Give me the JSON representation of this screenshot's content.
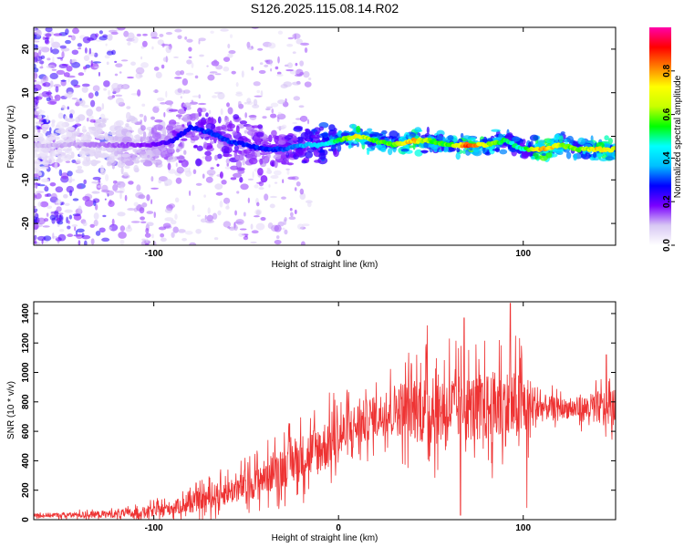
{
  "figure": {
    "title": "S126.2025.115.08.14.R02"
  },
  "chart_data": [
    {
      "type": "heatmap",
      "name": "spectrogram",
      "xlabel": "Height of straight line (km)",
      "ylabel": "Frequency (Hz)",
      "xlim": [
        -165,
        150
      ],
      "ylim": [
        -25,
        25
      ],
      "xticks": [
        -100,
        0,
        100
      ],
      "yticks": [
        -20,
        -10,
        0,
        10,
        20
      ],
      "grid": false,
      "colorbar": {
        "label": "Normalized spectral amplitude",
        "range": [
          0,
          1
        ],
        "ticks": [
          0.0,
          0.2,
          0.4,
          0.6,
          0.8
        ],
        "tick_labels": [
          "0.0",
          "0.2",
          "0.4",
          "0.6",
          "0.8"
        ],
        "colormap": [
          "#ffffff",
          "#d8c8f4",
          "#7a00ff",
          "#0000ff",
          "#00bfff",
          "#00ffff",
          "#00ff00",
          "#c8ff00",
          "#ffff00",
          "#ff8000",
          "#ff0000",
          "#ff00aa"
        ]
      },
      "ridge": {
        "x": [
          -165,
          -140,
          -120,
          -100,
          -90,
          -80,
          -70,
          -60,
          -50,
          -40,
          -30,
          -20,
          -10,
          0,
          10,
          20,
          30,
          40,
          50,
          60,
          70,
          80,
          90,
          100,
          110,
          120,
          130,
          140,
          150
        ],
        "frequency": [
          -2,
          -2,
          -2,
          -2,
          -1,
          2,
          1,
          -1,
          -2,
          -3,
          -3,
          -2,
          -2,
          -1,
          0,
          -1,
          -2,
          -1,
          -1,
          -2,
          -2,
          -2,
          -1,
          -3,
          -3,
          -2,
          -3,
          -3,
          -3
        ],
        "amplitude": [
          0.1,
          0.12,
          0.15,
          0.2,
          0.25,
          0.3,
          0.32,
          0.32,
          0.3,
          0.3,
          0.32,
          0.4,
          0.45,
          0.55,
          0.8,
          0.6,
          0.6,
          0.85,
          0.6,
          0.6,
          0.95,
          0.7,
          0.55,
          0.5,
          0.9,
          0.7,
          0.6,
          0.8,
          0.7
        ]
      }
    },
    {
      "type": "line",
      "name": "snr",
      "xlabel": "Height of straight line (km)",
      "ylabel": "SNR (10 * v/v)",
      "xlim": [
        -165,
        150
      ],
      "ylim": [
        0,
        1480
      ],
      "xticks": [
        -100,
        0,
        100
      ],
      "yticks": [
        0,
        200,
        400,
        600,
        800,
        1000,
        1200,
        1400
      ],
      "grid": false,
      "color": "#ee3333",
      "envelope": {
        "x": [
          -165,
          -150,
          -130,
          -110,
          -100,
          -90,
          -80,
          -70,
          -60,
          -50,
          -40,
          -30,
          -20,
          -10,
          0,
          10,
          20,
          30,
          40,
          50,
          60,
          70,
          80,
          90,
          100,
          110,
          120,
          130,
          140,
          150
        ],
        "baseline": [
          30,
          30,
          35,
          45,
          60,
          80,
          110,
          150,
          190,
          230,
          290,
          360,
          420,
          480,
          560,
          640,
          700,
          750,
          760,
          740,
          760,
          760,
          760,
          760,
          780,
          760,
          760,
          750,
          760,
          760
        ],
        "spread": [
          20,
          20,
          30,
          40,
          50,
          60,
          80,
          100,
          110,
          130,
          150,
          180,
          200,
          220,
          220,
          200,
          170,
          220,
          280,
          300,
          300,
          280,
          300,
          330,
          300,
          120,
          80,
          100,
          140,
          160
        ]
      },
      "peaks": [
        {
          "x": 93,
          "y": 1470
        },
        {
          "x": 68,
          "y": 1370
        },
        {
          "x": 48,
          "y": 1320
        },
        {
          "x": 60,
          "y": 1230
        },
        {
          "x": 87,
          "y": 1220
        },
        {
          "x": 145,
          "y": 1120
        },
        {
          "x": 66,
          "y": 30
        },
        {
          "x": 102,
          "y": 80
        }
      ]
    }
  ]
}
